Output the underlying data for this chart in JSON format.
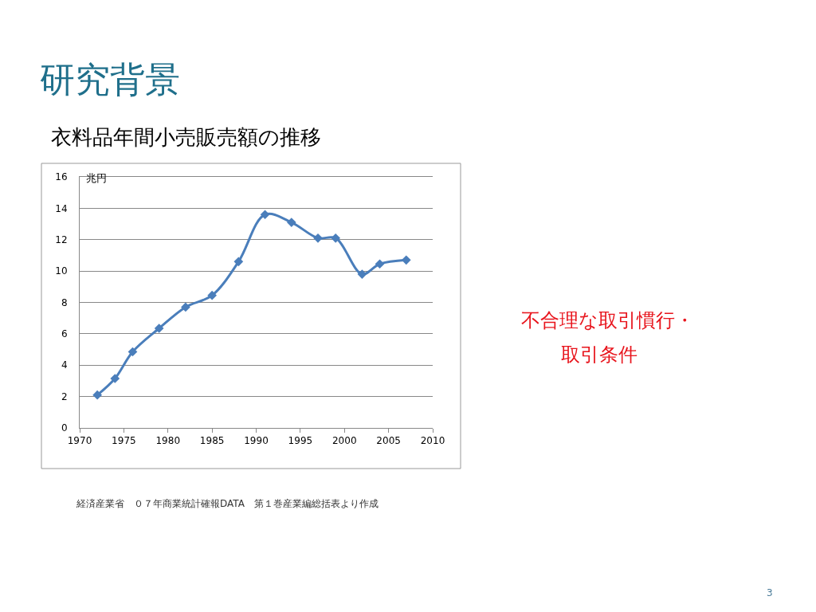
{
  "chart_data": {
    "type": "line",
    "title": "研究背景",
    "subtitle": "衣料品年間小売販売額の推移",
    "ylabel": "兆円",
    "x": [
      1972,
      1974,
      1976,
      1979,
      1982,
      1985,
      1988,
      1991,
      1994,
      1997,
      1999,
      2002,
      2004,
      2007
    ],
    "series": [
      {
        "color": "#4a7ebb",
        "values": [
          2.1,
          3.15,
          4.85,
          6.35,
          7.7,
          8.45,
          10.6,
          13.6,
          13.1,
          12.1,
          12.1,
          9.8,
          10.45,
          10.7
        ]
      }
    ],
    "xlim": [
      1970,
      2010
    ],
    "xticks": [
      1970,
      1975,
      1980,
      1985,
      1990,
      1995,
      2000,
      2005,
      2010
    ],
    "ylim": [
      0,
      16
    ],
    "yticks": [
      0,
      2,
      4,
      6,
      8,
      10,
      12,
      14,
      16
    ],
    "grid": "y",
    "marker": "diamond",
    "line_style": "solid",
    "annotations": [
      "経済産業省　０７年商業統計確報DATA　第１巻産業編総括表より作成",
      "不合理な取引慣行・",
      "取引条件",
      "3"
    ]
  }
}
